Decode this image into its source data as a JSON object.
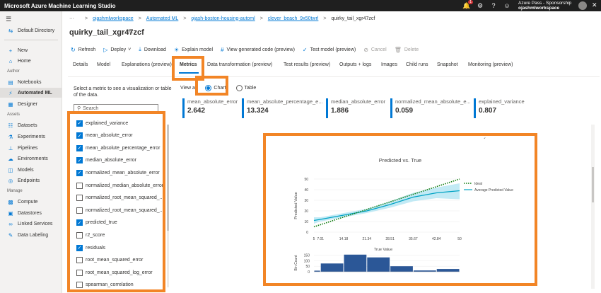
{
  "app": {
    "title": "Microsoft Azure Machine Learning Studio"
  },
  "topbar": {
    "notification_count": "1",
    "account_name": "Azure Pass - Sponsorship",
    "workspace_name": "ojashmlworkspace",
    "icons": [
      "bell-icon",
      "gear-icon",
      "help-icon",
      "smiley-icon",
      "avatar",
      "close-icon"
    ]
  },
  "nav": {
    "directory": "Default Directory",
    "new": "New",
    "home": "Home",
    "section_author": "Author",
    "notebooks": "Notebooks",
    "automated_ml": "Automated ML",
    "designer": "Designer",
    "section_assets": "Assets",
    "datasets": "Datasets",
    "experiments": "Experiments",
    "pipelines": "Pipelines",
    "environments": "Environments",
    "models": "Models",
    "endpoints": "Endpoints",
    "section_manage": "Manage",
    "compute": "Compute",
    "datastores": "Datastores",
    "linked_services": "Linked Services",
    "data_labeling": "Data Labeling"
  },
  "breadcrumb": [
    "ojashmlworkspace",
    "Automated ML",
    "ojash-boston-housing-automl",
    "clever_beach_9x50twrl",
    "quirky_tail_xgr47zcf"
  ],
  "run_title": "quirky_tail_xgr47zcf",
  "toolbar": {
    "refresh": "Refresh",
    "deploy": "Deploy",
    "download": "Download",
    "explain": "Explain model",
    "view_code": "View generated code (preview)",
    "test_model": "Test model (preview)",
    "cancel": "Cancel",
    "delete": "Delete"
  },
  "tabs": [
    "Details",
    "Model",
    "Explanations (preview)",
    "Metrics",
    "Data transformation (preview)",
    "Test results (preview)",
    "Outputs + logs",
    "Images",
    "Child runs",
    "Snapshot",
    "Monitoring (preview)"
  ],
  "metrics_panel": {
    "instruction": "Select a metric to see a visualization or table of the data.",
    "search_placeholder": "Search",
    "items": [
      {
        "label": "explained_variance",
        "checked": true
      },
      {
        "label": "mean_absolute_error",
        "checked": true
      },
      {
        "label": "mean_absolute_percentage_error",
        "checked": true
      },
      {
        "label": "median_absolute_error",
        "checked": true
      },
      {
        "label": "normalized_mean_absolute_error",
        "checked": true
      },
      {
        "label": "normalized_median_absolute_error",
        "checked": false
      },
      {
        "label": "normalized_root_mean_squared_...",
        "checked": false
      },
      {
        "label": "normalized_root_mean_squared_...",
        "checked": false
      },
      {
        "label": "predicted_true",
        "checked": true
      },
      {
        "label": "r2_score",
        "checked": false
      },
      {
        "label": "residuals",
        "checked": true
      },
      {
        "label": "root_mean_squared_error",
        "checked": false
      },
      {
        "label": "root_mean_squared_log_error",
        "checked": false
      },
      {
        "label": "spearman_correlation",
        "checked": false
      }
    ]
  },
  "view_as": {
    "label": "View as",
    "chart": "Chart",
    "table": "Table",
    "selected": "chart"
  },
  "cards": [
    {
      "label": "mean_absolute_error",
      "value": "2.642"
    },
    {
      "label": "mean_absolute_percentage_e...",
      "value": "13.324"
    },
    {
      "label": "median_absolute_error",
      "value": "1.886"
    },
    {
      "label": "normalized_mean_absolute_e...",
      "value": "0.059"
    },
    {
      "label": "explained_variance",
      "value": "0.807"
    }
  ],
  "chart_data": {
    "type": "line",
    "title": "Predicted vs. True",
    "ylabel": "Predicted Value",
    "xlabel": "True Value",
    "x_ticks": [
      "5",
      "7.01",
      "14.18",
      "21.34",
      "28.51",
      "35.67",
      "42.84",
      "50"
    ],
    "y_ticks": [
      "0",
      "10",
      "20",
      "30",
      "40",
      "50"
    ],
    "ylim": [
      0,
      50
    ],
    "xlim": [
      5,
      50
    ],
    "legend": [
      "Ideal",
      "Average Predicted Value"
    ],
    "legend_position": "right",
    "series": [
      {
        "name": "Ideal",
        "style": "dotted",
        "color": "#107c10",
        "x": [
          5,
          50
        ],
        "y": [
          5,
          50
        ]
      },
      {
        "name": "Average Predicted Value",
        "color": "#00a3c4",
        "x": [
          5,
          7.01,
          14.18,
          21.34,
          28.51,
          35.67,
          42.84,
          50
        ],
        "y": [
          11,
          12,
          16,
          20,
          26,
          33,
          37,
          39
        ],
        "lower": [
          8,
          10,
          14,
          18,
          23,
          29,
          32,
          31
        ],
        "upper": [
          14,
          14,
          18,
          22,
          29,
          37,
          42,
          46
        ]
      }
    ],
    "histogram": {
      "ylabel": "Bin Count",
      "y_ticks": [
        "0",
        "50",
        "100",
        "150"
      ],
      "ylim": [
        0,
        160
      ],
      "bin_edges": [
        5,
        7.01,
        14.18,
        21.34,
        28.51,
        35.67,
        42.84,
        50
      ],
      "counts": [
        10,
        75,
        155,
        130,
        50,
        12,
        25
      ],
      "color": "#2b5797"
    }
  }
}
